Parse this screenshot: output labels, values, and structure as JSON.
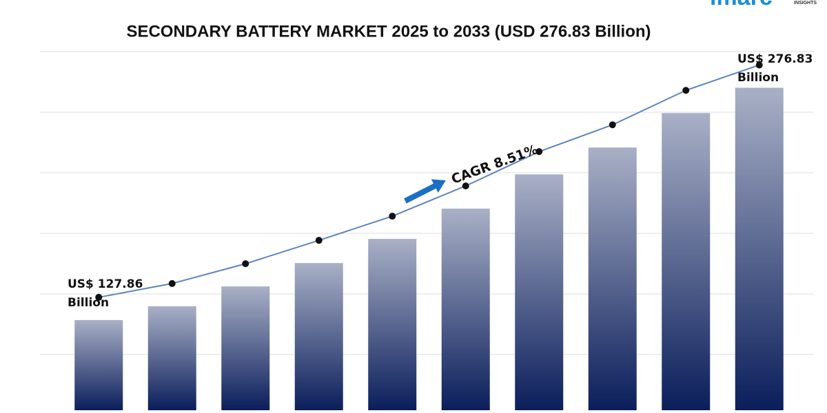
{
  "chart_data": {
    "type": "bar",
    "title": "SECONDARY BATTERY MARKET 2025 to 2033 (USD 276.83 Billion)",
    "categories": [
      null,
      null,
      null,
      null,
      null,
      null,
      null,
      null,
      null,
      null
    ],
    "values": [
      127.86,
      136.7,
      149.4,
      164.4,
      179.9,
      199.3,
      221.3,
      238.5,
      260.6,
      276.83
    ],
    "color": "#0b1e5b",
    "gradient_top_color": "#a9b0c6",
    "line_color": "#5b83c0",
    "ylim": [
      70,
      300
    ],
    "grid": true,
    "start_label": [
      "US$ 127.86",
      "Billion"
    ],
    "end_label": [
      "US$ 276.83",
      "Billion"
    ],
    "cagr_label": "CAGR 8.51%",
    "arrow_color": "#1a6fc4",
    "logo": {
      "text": "imarc",
      "subtext": "INSIGHTS",
      "color": "#1a8fd6"
    }
  }
}
